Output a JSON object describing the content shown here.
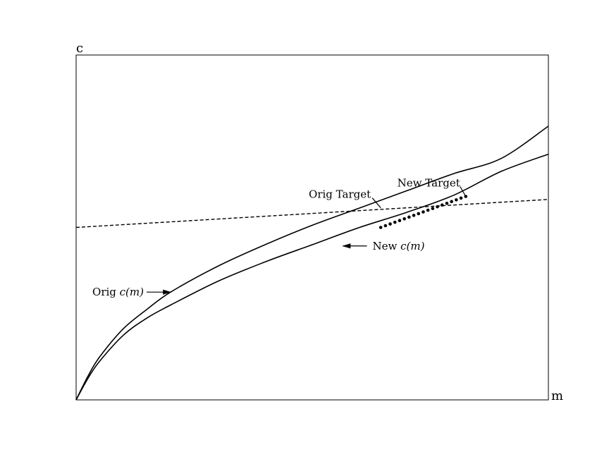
{
  "chart_data": {
    "type": "line",
    "xlabel": "m",
    "ylabel": "c",
    "xlim": [
      0,
      10
    ],
    "ylim": [
      0,
      1.6
    ],
    "grid": false,
    "legend": "none",
    "series": [
      {
        "name": "Orig c(m)",
        "style": "solid",
        "color": "#000000",
        "x": [
          0,
          0.25,
          0.5,
          1,
          1.5,
          2,
          3,
          4,
          5,
          6,
          7,
          8,
          9,
          10
        ],
        "y": [
          0,
          0.11,
          0.2,
          0.33,
          0.42,
          0.5,
          0.62,
          0.72,
          0.81,
          0.89,
          0.97,
          1.05,
          1.12,
          1.27
        ]
      },
      {
        "name": "New c(m)",
        "style": "solid",
        "color": "#000000",
        "x": [
          0,
          0.25,
          0.5,
          1,
          1.5,
          2,
          3,
          4,
          5,
          6,
          7,
          8,
          9,
          10
        ],
        "y": [
          0,
          0.1,
          0.18,
          0.3,
          0.38,
          0.44,
          0.55,
          0.64,
          0.72,
          0.8,
          0.87,
          0.95,
          1.06,
          1.14
        ]
      },
      {
        "style": "dashed",
        "color": "#000000",
        "x": [
          0,
          10
        ],
        "y": [
          0.8,
          0.93
        ]
      },
      {
        "style": "dots",
        "color": "#000000",
        "x": [
          6.45,
          6.55,
          6.65,
          6.75,
          6.85,
          6.95,
          7.05,
          7.15,
          7.25,
          7.35,
          7.45,
          7.55,
          7.65,
          7.75,
          7.85,
          7.95,
          8.05,
          8.15,
          8.25
        ],
        "y": [
          0.8,
          0.808,
          0.816,
          0.824,
          0.832,
          0.84,
          0.848,
          0.856,
          0.864,
          0.872,
          0.88,
          0.888,
          0.896,
          0.904,
          0.912,
          0.92,
          0.928,
          0.936,
          0.944
        ]
      }
    ],
    "annotations": [
      {
        "text": "Orig Target",
        "x": 6.45,
        "y": 0.891
      },
      {
        "text": "New Target",
        "x": 8.25,
        "y": 0.944
      },
      {
        "text_plain": "New ",
        "text_math": "c(m)",
        "x": 5.65,
        "y": 0.714
      },
      {
        "text_plain": "Orig ",
        "text_math": "c(m)",
        "x": 2.0,
        "y": 0.5
      }
    ]
  }
}
